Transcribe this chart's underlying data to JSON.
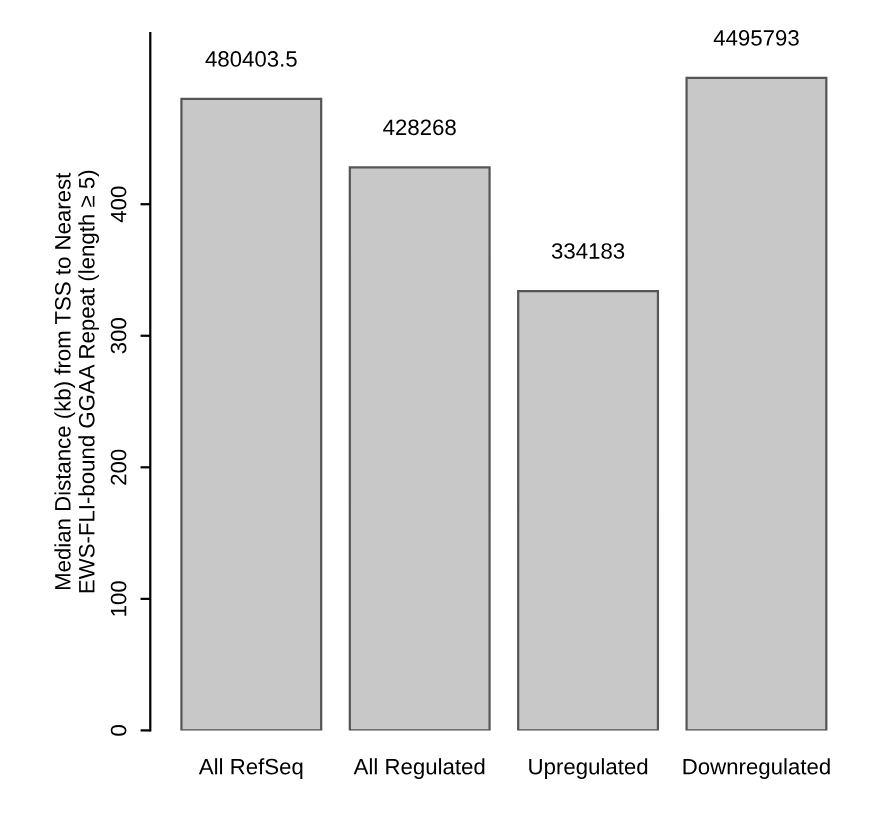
{
  "chart_data": {
    "type": "bar",
    "ylabel": "Median Distance (kb) from TSS to Nearest\nEWS-FLI-bound GGAA Repeat (length ≥ 5)",
    "categories": [
      "All RefSeq",
      "All Regulated",
      "Upregulated",
      "Downregulated"
    ],
    "values": [
      480,
      428,
      334,
      496
    ],
    "annotations": [
      {
        "text": "480403.5",
        "x": "All RefSeq",
        "y": 480
      },
      {
        "text": "428268",
        "x": "All Regulated",
        "y": 428
      },
      {
        "text": "334183",
        "x": "Upregulated",
        "y": 334
      },
      {
        "text": "4495793",
        "x": "Downregulated",
        "y": 496
      }
    ],
    "color": "#c8c8c8",
    "ylim": [
      0,
      530
    ],
    "yticks": [
      0,
      100,
      200,
      300,
      400
    ],
    "grid": false
  }
}
